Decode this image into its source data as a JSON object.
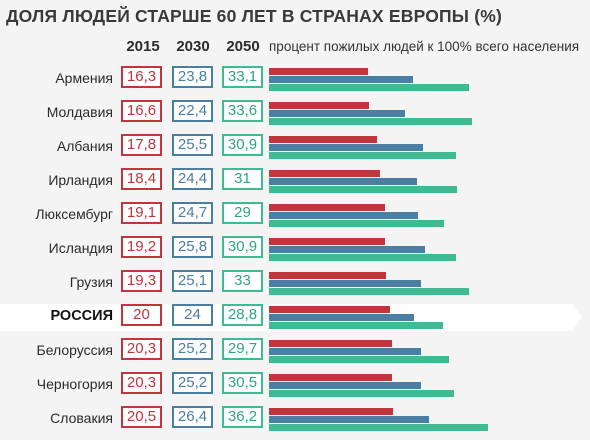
{
  "chart_data": {
    "type": "bar",
    "title": "ДОЛЯ ЛЮДЕЙ СТАРШЕ 60 ЛЕТ В СТРАНАХ ЕВРОПЫ (%)",
    "subtitle": "процент пожилых людей к 100% всего населения",
    "categories": [
      "Армения",
      "Молдавия",
      "Албания",
      "Ирландия",
      "Люксембург",
      "Исландия",
      "Грузия",
      "РОССИЯ",
      "Белоруссия",
      "Черногория",
      "Словакия"
    ],
    "highlight": "РОССИЯ",
    "series": [
      {
        "name": "2015",
        "color": "#c1353c",
        "values": [
          16.3,
          16.6,
          17.8,
          18.4,
          19.1,
          19.2,
          19.3,
          20,
          20.3,
          20.3,
          20.5
        ],
        "labels": [
          "16,3",
          "16,6",
          "17,8",
          "18,4",
          "19,1",
          "19,2",
          "19,3",
          "20",
          "20,3",
          "20,3",
          "20,5"
        ]
      },
      {
        "name": "2030",
        "color": "#4a7ea3",
        "values": [
          23.8,
          22.4,
          25.5,
          24.4,
          24.7,
          25.8,
          25.1,
          24,
          25.2,
          25.2,
          26.4
        ],
        "labels": [
          "23,8",
          "22,4",
          "25,5",
          "24,4",
          "24,7",
          "25,8",
          "25,1",
          "24",
          "25,2",
          "25,2",
          "26,4"
        ]
      },
      {
        "name": "2050",
        "color": "#3fba93",
        "values": [
          33.1,
          33.6,
          30.9,
          31,
          29,
          30.9,
          33,
          28.8,
          29.7,
          30.5,
          36.2
        ],
        "labels": [
          "33,1",
          "33,6",
          "30,9",
          "31",
          "29",
          "30,9",
          "33",
          "28,8",
          "29,7",
          "30,5",
          "36,2"
        ]
      }
    ],
    "xlim": [
      0,
      100
    ],
    "grid": false,
    "legend": "top"
  }
}
